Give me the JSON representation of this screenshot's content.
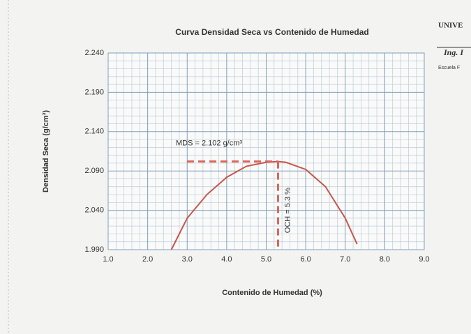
{
  "chart_data": {
    "type": "line",
    "title": "Curva Densidad Seca  vs Contenido de Humedad",
    "x_label": "Contenido de Humedad (%)",
    "y_label": "Densidad Seca  (g/cm³)",
    "x": [
      2.6,
      3.0,
      3.5,
      4.0,
      4.5,
      5.0,
      5.3,
      5.5,
      6.0,
      6.5,
      7.0,
      7.3
    ],
    "values": [
      1.99,
      2.03,
      2.06,
      2.082,
      2.096,
      2.101,
      2.102,
      2.101,
      2.092,
      2.07,
      2.03,
      1.997
    ],
    "color": "#c8554a",
    "xlim": [
      1.0,
      9.0
    ],
    "xticks": [
      {
        "value": 1,
        "label": "1.0"
      },
      {
        "value": 2,
        "label": "2.0"
      },
      {
        "value": 3,
        "label": "3.0"
      },
      {
        "value": 4,
        "label": "4.0"
      },
      {
        "value": 5,
        "label": "5.0"
      },
      {
        "value": 6,
        "label": "6.0"
      },
      {
        "value": 7,
        "label": "7.0"
      },
      {
        "value": 8,
        "label": "8.0"
      },
      {
        "value": 9,
        "label": "9.0"
      }
    ],
    "ylim": [
      1.99,
      2.24
    ],
    "yticks": [
      {
        "value": 1.99,
        "label": "1.990"
      },
      {
        "value": 2.04,
        "label": "2.040"
      },
      {
        "value": 2.09,
        "label": "2.090"
      },
      {
        "value": 2.14,
        "label": "2.140"
      },
      {
        "value": 2.19,
        "label": "2.190"
      },
      {
        "value": 2.24,
        "label": "2.240"
      }
    ],
    "grid": true,
    "mds": 2.102,
    "och": 5.3,
    "mds_label": "MDS = 2.102 g/cm³",
    "och_label": "OCH = 5.3 %"
  },
  "header": {
    "university": "UNIVE",
    "engineer": "Ing. I",
    "school": "Escuela F"
  }
}
